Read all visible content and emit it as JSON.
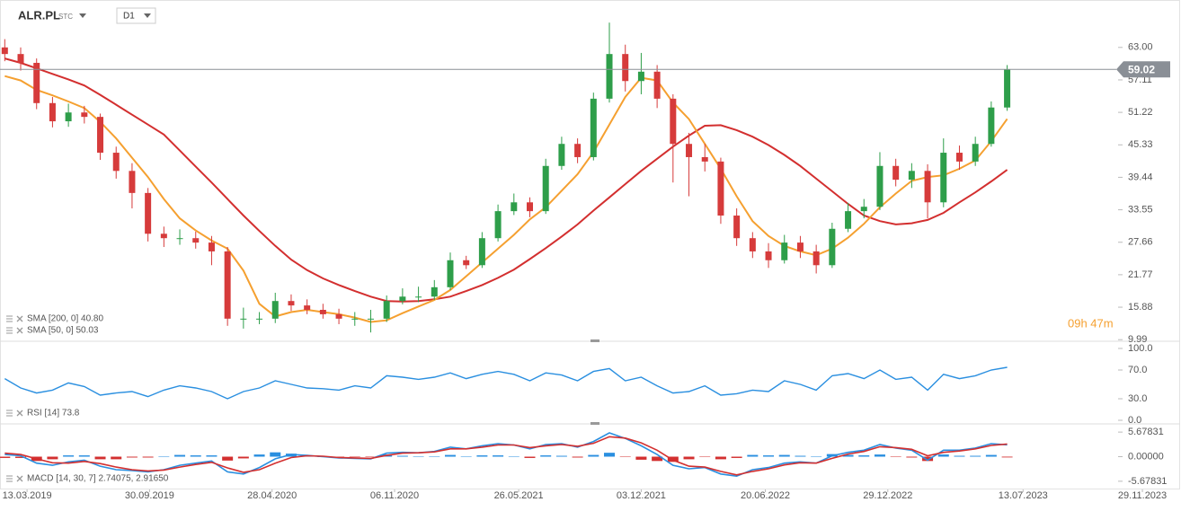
{
  "header": {
    "symbol": "ALR.PL",
    "market": "STC",
    "interval": "D1"
  },
  "timer": "09h 47m",
  "chart_data": [
    {
      "type": "candlestick",
      "xlim": [
        -0.3,
        73.7
      ],
      "ylim": [
        9.7,
        71.6
      ],
      "yticks": [
        {
          "value": 63,
          "label": "63.00"
        },
        57.11,
        51.22,
        45.33,
        39.44,
        33.55,
        27.66,
        21.77,
        15.88,
        9.99
      ],
      "up_color": "#2e9e4a",
      "down_color": "#d63b3b",
      "open": [
        63.0,
        61.8,
        60.2,
        52.9,
        49.6,
        51.2,
        50.4,
        43.9,
        40.6,
        36.6,
        29.2,
        28.4,
        28.4,
        27.6,
        26.0,
        13.8,
        13.8,
        13.8,
        17.0,
        16.2,
        15.4,
        14.6,
        13.8,
        13.8,
        13.8,
        17.0,
        17.8,
        17.8,
        19.5,
        24.4,
        23.5,
        28.4,
        33.3,
        34.9,
        33.3,
        41.5,
        45.5,
        43.1,
        53.7,
        61.8,
        56.9,
        58.6,
        53.7,
        45.5,
        43.1,
        42.3,
        32.5,
        28.4,
        26.0,
        24.4,
        27.6,
        26.0,
        23.5,
        30.1,
        33.3,
        34.1,
        41.5,
        39.0,
        40.6,
        34.9,
        43.9,
        42.3,
        45.5,
        52.1
      ],
      "high": [
        64.5,
        63.0,
        61.0,
        54.0,
        52.8,
        52.4,
        51.0,
        45.0,
        42.0,
        37.5,
        30.5,
        30.0,
        29.6,
        28.8,
        26.8,
        15.8,
        15.0,
        18.5,
        18.2,
        17.3,
        16.5,
        15.6,
        15.0,
        15.4,
        18.0,
        19.3,
        19.6,
        20.8,
        25.8,
        25.2,
        29.5,
        34.5,
        36.5,
        35.8,
        42.8,
        46.8,
        46.5,
        54.8,
        67.5,
        63.5,
        62.0,
        59.8,
        54.5,
        47.5,
        45.5,
        43.0,
        33.8,
        29.5,
        27.5,
        29.0,
        28.8,
        27.2,
        31.2,
        34.8,
        35.5,
        44.0,
        42.8,
        42.0,
        41.8,
        46.5,
        45.2,
        46.8,
        53.2,
        59.8
      ],
      "low": [
        60.5,
        58.8,
        51.8,
        48.5,
        48.6,
        49.2,
        42.6,
        39.2,
        33.8,
        27.8,
        26.8,
        27.2,
        26.5,
        23.5,
        12.5,
        12.0,
        12.8,
        13.0,
        15.2,
        14.6,
        13.8,
        12.8,
        12.5,
        11.3,
        13.2,
        16.4,
        16.8,
        17.2,
        19.0,
        22.8,
        23.0,
        27.8,
        32.6,
        32.2,
        32.8,
        40.8,
        42.0,
        42.5,
        53.0,
        55.0,
        54.5,
        52.0,
        38.5,
        36.0,
        40.5,
        31.0,
        27.0,
        24.8,
        23.0,
        23.8,
        24.8,
        22.0,
        23.0,
        29.5,
        32.0,
        33.5,
        37.8,
        37.5,
        32.0,
        34.0,
        40.8,
        41.5,
        45.0,
        51.5
      ],
      "close": [
        61.8,
        60.2,
        52.9,
        49.6,
        51.2,
        50.4,
        43.9,
        40.6,
        36.6,
        29.2,
        28.4,
        28.4,
        27.6,
        26.0,
        13.8,
        13.8,
        13.8,
        17.0,
        16.2,
        15.4,
        14.6,
        13.8,
        13.8,
        13.8,
        17.0,
        17.8,
        17.8,
        19.5,
        24.4,
        23.5,
        28.4,
        33.3,
        34.9,
        33.3,
        41.5,
        45.5,
        43.1,
        53.7,
        61.8,
        56.9,
        58.6,
        53.7,
        45.5,
        43.1,
        42.3,
        32.5,
        28.4,
        26.0,
        24.4,
        27.6,
        26.0,
        23.5,
        30.1,
        33.3,
        34.1,
        41.5,
        39.0,
        40.6,
        34.9,
        43.9,
        42.3,
        45.5,
        52.1,
        59.02
      ],
      "overlays": [
        {
          "color": "#d32f2f",
          "values": [
            61.0,
            60.2,
            59.2,
            58.2,
            57.2,
            56.1,
            54.4,
            52.6,
            50.8,
            49.0,
            47.2,
            44.3,
            41.4,
            38.5,
            35.5,
            32.5,
            29.7,
            27.0,
            24.5,
            22.6,
            21.1,
            19.9,
            18.8,
            17.8,
            17.0,
            16.9,
            17.0,
            17.3,
            17.8,
            18.8,
            19.9,
            21.2,
            22.7,
            24.6,
            26.6,
            28.7,
            30.9,
            33.4,
            35.8,
            38.2,
            40.6,
            42.8,
            45.0,
            47.0,
            48.8,
            48.9,
            48.0,
            46.8,
            45.3,
            43.5,
            41.5,
            39.2,
            36.9,
            34.6,
            32.5,
            31.5,
            30.9,
            31.1,
            31.7,
            33.0,
            34.9,
            36.7,
            38.7,
            40.8
          ]
        },
        {
          "color": "#f5a030",
          "values": [
            57.8,
            57.0,
            55.3,
            54.3,
            53.2,
            52.0,
            49.5,
            46.5,
            43.0,
            39.5,
            35.5,
            32.0,
            29.8,
            28.0,
            26.5,
            22.5,
            16.5,
            14.2,
            15.0,
            15.4,
            15.0,
            14.6,
            14.0,
            13.2,
            13.5,
            14.8,
            16.0,
            17.2,
            19.0,
            21.5,
            24.0,
            26.5,
            29.0,
            31.8,
            34.0,
            37.0,
            40.0,
            44.0,
            49.0,
            54.0,
            57.5,
            57.0,
            53.0,
            50.0,
            45.5,
            41.0,
            36.0,
            31.5,
            28.8,
            27.0,
            26.0,
            25.3,
            26.5,
            28.5,
            31.0,
            34.0,
            36.5,
            38.8,
            39.5,
            39.8,
            41.0,
            42.5,
            46.0,
            50.03
          ]
        }
      ],
      "last_value": 59.02,
      "last_color": "#8a8f96",
      "legend": [
        "SMA [200, 0] 40.80",
        "SMA [50, 0] 50.03"
      ]
    },
    {
      "type": "line",
      "xlim": [
        -0.3,
        73.7
      ],
      "ylim": [
        -5,
        110
      ],
      "yticks": [
        {
          "value": 100,
          "label": "100.0"
        },
        {
          "value": 70,
          "label": "70.0"
        },
        {
          "value": 30,
          "label": "30.0"
        },
        {
          "value": 0,
          "label": "0.0"
        }
      ],
      "series": [
        {
          "color": "#2a8fe0",
          "values": [
            58,
            45,
            38,
            42,
            52,
            47,
            35,
            38,
            40,
            33,
            42,
            48,
            45,
            40,
            30,
            40,
            45,
            55,
            50,
            45,
            44,
            42,
            48,
            45,
            62,
            60,
            57,
            60,
            66,
            58,
            64,
            68,
            64,
            55,
            66,
            63,
            55,
            68,
            72,
            55,
            60,
            48,
            38,
            40,
            48,
            35,
            37,
            42,
            40,
            55,
            50,
            42,
            62,
            65,
            58,
            70,
            57,
            60,
            42,
            64,
            58,
            62,
            70,
            73.8
          ]
        }
      ],
      "legend": [
        "RSI [14] 73.8"
      ]
    },
    {
      "type": "macd",
      "xlim": [
        -0.3,
        73.7
      ],
      "ylim": [
        -7.57,
        7.57
      ],
      "yticks": [
        5.67831,
        {
          "value": 0,
          "label": "0.00000"
        },
        -5.67831
      ],
      "xticks": [
        {
          "value": 1.4,
          "label": "13.03.2019"
        },
        {
          "value": 9.1,
          "label": "30.09.2019"
        },
        {
          "value": 16.8,
          "label": "28.04.2020"
        },
        {
          "value": 24.5,
          "label": "06.11.2020"
        },
        {
          "value": 32.3,
          "label": "26.05.2021"
        },
        {
          "value": 40.0,
          "label": "03.12.2021"
        },
        {
          "value": 47.8,
          "label": "20.06.2022"
        },
        {
          "value": 55.5,
          "label": "29.12.2022"
        },
        {
          "value": 64.0,
          "label": "13.07.2023"
        },
        {
          "value": 71.5,
          "label": "29.11.2023"
        }
      ],
      "series": [
        {
          "color": "#2a8fe0",
          "values": [
            0.5,
            0.2,
            -1.5,
            -2.0,
            -1.2,
            -0.8,
            -2.2,
            -3.0,
            -3.2,
            -3.5,
            -3.0,
            -2.0,
            -1.5,
            -1.0,
            -3.5,
            -4.0,
            -2.5,
            -0.5,
            0.5,
            0.3,
            0,
            -0.3,
            -0.4,
            -0.5,
            0.8,
            1.0,
            0.9,
            1.2,
            2.2,
            1.8,
            2.5,
            3.0,
            2.7,
            1.8,
            2.8,
            3.0,
            2.2,
            3.5,
            5.5,
            4.2,
            2.5,
            0.5,
            -2.0,
            -2.8,
            -2.5,
            -4.0,
            -4.5,
            -3.0,
            -2.5,
            -1.5,
            -1.2,
            -1.5,
            0.2,
            1.0,
            1.5,
            2.8,
            2.0,
            1.5,
            -0.8,
            1.5,
            1.5,
            2.0,
            3.0,
            2.74075
          ]
        },
        {
          "color": "#d32f2f",
          "values": [
            0.8,
            0.5,
            -0.5,
            -1.4,
            -1.5,
            -1.1,
            -1.6,
            -2.4,
            -3.0,
            -3.3,
            -3.1,
            -2.4,
            -1.8,
            -1.3,
            -2.6,
            -3.6,
            -3.0,
            -1.5,
            -0.2,
            0.2,
            0.1,
            -0.2,
            -0.3,
            -0.4,
            0.3,
            0.8,
            0.9,
            1.1,
            1.8,
            1.8,
            2.2,
            2.7,
            2.7,
            2.1,
            2.5,
            2.8,
            2.4,
            3.1,
            4.6,
            4.3,
            3.2,
            1.5,
            -0.8,
            -2.2,
            -2.4,
            -3.4,
            -4.2,
            -3.4,
            -2.8,
            -1.9,
            -1.4,
            -1.5,
            -0.4,
            0.6,
            1.2,
            2.3,
            2.1,
            1.7,
            0.2,
            1.0,
            1.3,
            1.8,
            2.6,
            2.9165
          ]
        }
      ],
      "histogram": [
        -0.3,
        -0.3,
        -1.0,
        -0.6,
        0.3,
        0.3,
        -0.6,
        -0.6,
        -0.2,
        -0.2,
        0.1,
        0.4,
        0.3,
        0.3,
        -0.9,
        -0.4,
        0.5,
        1.0,
        0.7,
        0.1,
        -0.1,
        -0.1,
        -0.1,
        -0.1,
        0.5,
        0.2,
        0,
        0.1,
        0.4,
        0,
        0.3,
        0.3,
        0,
        -0.3,
        0.3,
        0.2,
        -0.2,
        0.4,
        0.9,
        -0.1,
        -0.7,
        -1.0,
        -1.2,
        -0.6,
        -0.1,
        -0.6,
        -0.3,
        0.4,
        0.3,
        0.4,
        0.2,
        0,
        0.6,
        0.4,
        0.3,
        0.5,
        -0.1,
        -0.2,
        -1.0,
        0.5,
        0.2,
        0.2,
        0.4,
        -0.17575
      ],
      "histogram_colors": {
        "positive": "#2a8fe0",
        "negative": "#d32f2f"
      },
      "legend": [
        "MACD [14, 30, 7] 2.74075, 2.91650"
      ]
    }
  ]
}
